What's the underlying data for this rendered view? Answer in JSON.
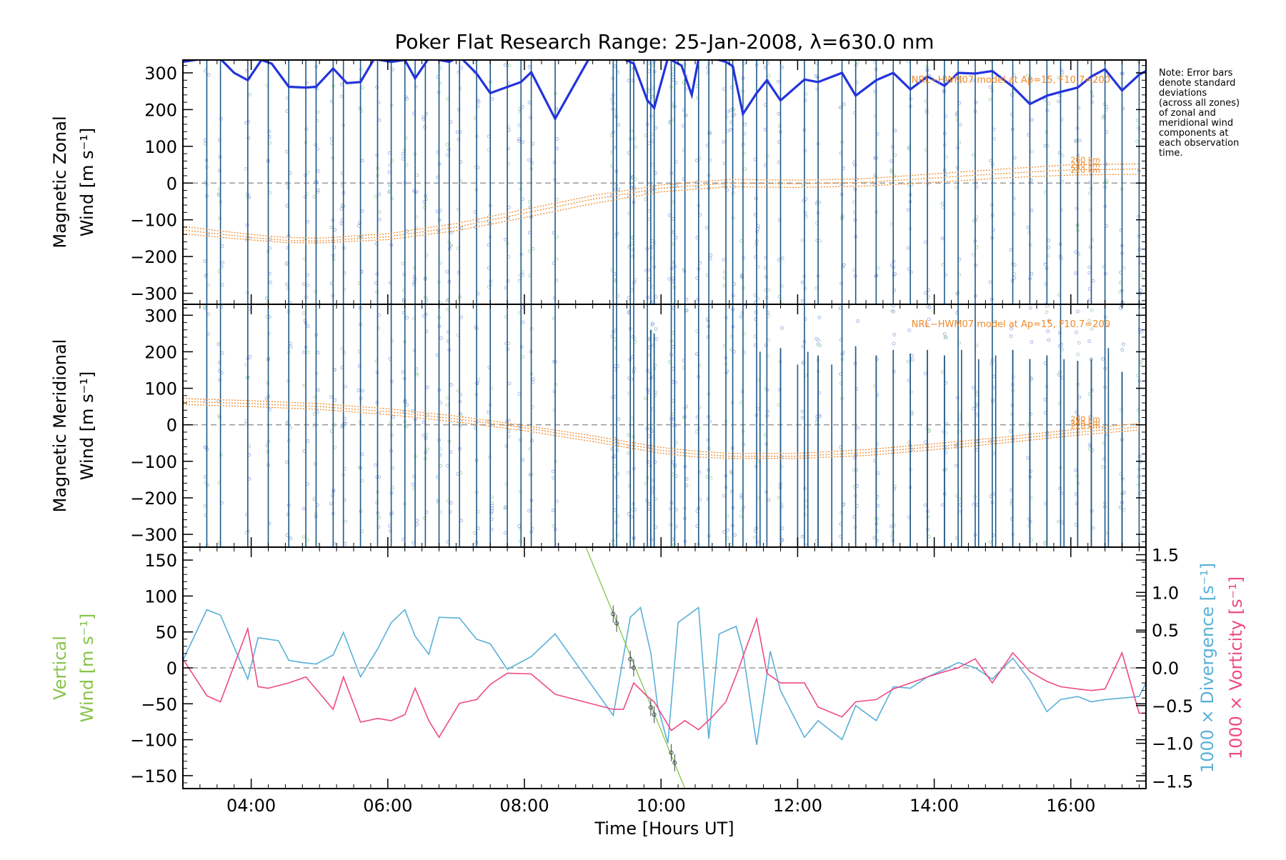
{
  "chart_data": {
    "type": "line",
    "title": "Poker Flat Research Range: 25-Jan-2008, λ=630.0 nm",
    "xlabel": "Time [Hours UT]",
    "xlim": [
      3.0,
      17.1
    ],
    "xticks": [
      4,
      6,
      8,
      10,
      12,
      14,
      16
    ],
    "xtick_labels": [
      "04:00",
      "06:00",
      "08:00",
      "10:00",
      "12:00",
      "14:00",
      "16:00"
    ],
    "note": [
      "Note: Error bars",
      "denote standard",
      "deviations",
      "(across all zones)",
      "of zonal and",
      "meridional wind",
      "components at",
      "each observation",
      "time."
    ],
    "colors": {
      "zonal_mean": "#2233dd",
      "error_bar": "#1f5a8a",
      "model": "#f08a2a",
      "vertical": "#88c34a",
      "divergence": "#5ab0d8",
      "vorticity": "#ee4a86",
      "zero_line": "#888888",
      "zone_dot_a": "#8fa7dd",
      "zone_dot_b": "#9fd0a0"
    },
    "obs_times": [
      3.35,
      3.55,
      3.95,
      4.25,
      4.55,
      4.8,
      4.95,
      5.2,
      5.35,
      5.6,
      5.85,
      6.05,
      6.25,
      6.4,
      6.55,
      6.75,
      6.9,
      7.05,
      7.3,
      7.5,
      7.75,
      7.95,
      8.1,
      8.45,
      9.3,
      9.35,
      9.55,
      9.6,
      9.8,
      9.85,
      9.9,
      10.15,
      10.2,
      10.35,
      10.55,
      10.7,
      10.95,
      11.05,
      11.2,
      11.4,
      11.55,
      11.75,
      12.1,
      12.3,
      12.65,
      12.85,
      13.15,
      13.4,
      13.65,
      13.9,
      14.15,
      14.35,
      14.6,
      14.85,
      15.15,
      15.4,
      15.65,
      15.85,
      16.1,
      16.3,
      16.5,
      16.75,
      17.0
    ],
    "panels": [
      {
        "ylabel": [
          "Magnetic Zonal",
          "Wind [m s⁻¹]"
        ],
        "ylim": [
          -330,
          335
        ],
        "yticks": [
          -300,
          -200,
          -100,
          0,
          100,
          200,
          300
        ],
        "ytick_labels": [
          "−300",
          "−200",
          "−100",
          "0",
          "100",
          "200",
          "300"
        ],
        "model_label": "NRL−HWM07 model at Ap=15, F10.7=200",
        "model_altitudes": [
          "260 km",
          "240 km",
          "220 km"
        ],
        "series": [
          {
            "role": "observed-mean",
            "x": [
              3.0,
              3.35,
              3.55,
              3.75,
              3.95,
              4.15,
              4.3,
              4.55,
              4.8,
              4.95,
              5.2,
              5.4,
              5.6,
              5.8,
              6.05,
              6.25,
              6.4,
              6.6,
              6.9,
              7.05,
              7.3,
              7.5,
              7.95,
              8.1,
              8.45,
              8.95,
              9.3,
              9.45,
              9.6,
              9.8,
              9.9,
              10.1,
              10.3,
              10.45,
              10.55,
              10.75,
              10.95,
              11.05,
              11.2,
              11.4,
              11.55,
              11.75,
              12.1,
              12.3,
              12.65,
              12.85,
              13.15,
              13.4,
              13.65,
              13.9,
              14.15,
              14.35,
              14.6,
              14.85,
              15.15,
              15.4,
              15.65,
              15.85,
              16.1,
              16.3,
              16.5,
              16.75,
              17.0,
              17.1
            ],
            "y": [
              330,
              340,
              338,
              300,
              280,
              335,
              325,
              262,
              260,
              262,
              312,
              272,
              275,
              338,
              330,
              335,
              285,
              340,
              330,
              345,
              298,
              245,
              275,
              302,
              175,
              340,
              345,
              338,
              325,
              225,
              205,
              340,
              320,
              240,
              338,
              340,
              330,
              318,
              188,
              245,
              280,
              225,
              282,
              275,
              300,
              238,
              280,
              300,
              255,
              290,
              265,
              300,
              298,
              305,
              262,
              215,
              238,
              248,
              260,
              290,
              310,
              252,
              295,
              305
            ]
          },
          {
            "role": "model",
            "name": "260 km",
            "x": [
              3.0,
              4.0,
              4.5,
              5.0,
              6.0,
              7.0,
              8.0,
              9.0,
              10.0,
              11.0,
              12.0,
              13.0,
              14.0,
              15.0,
              16.0,
              17.0
            ],
            "y": [
              -118,
              -140,
              -148,
              -150,
              -138,
              -110,
              -72,
              -34,
              -5,
              10,
              8,
              12,
              25,
              38,
              50,
              52
            ]
          },
          {
            "role": "model",
            "name": "240 km",
            "x": [
              3.0,
              4.0,
              4.5,
              5.0,
              6.0,
              7.0,
              8.0,
              9.0,
              10.0,
              11.0,
              12.0,
              13.0,
              14.0,
              15.0,
              16.0,
              17.0
            ],
            "y": [
              -128,
              -148,
              -156,
              -158,
              -146,
              -120,
              -82,
              -44,
              -14,
              0,
              -2,
              2,
              14,
              26,
              36,
              38
            ]
          },
          {
            "role": "model",
            "name": "220 km",
            "x": [
              3.0,
              4.0,
              4.5,
              5.0,
              6.0,
              7.0,
              8.0,
              9.0,
              10.0,
              11.0,
              12.0,
              13.0,
              14.0,
              15.0,
              16.0,
              17.0
            ],
            "y": [
              -138,
              -155,
              -162,
              -163,
              -154,
              -130,
              -94,
              -56,
              -24,
              -10,
              -12,
              -8,
              2,
              14,
              22,
              24
            ]
          }
        ]
      },
      {
        "ylabel": [
          "Magnetic Meridional",
          "Wind [m s⁻¹]"
        ],
        "ylim": [
          -335,
          330
        ],
        "yticks": [
          -300,
          -200,
          -100,
          0,
          100,
          200,
          300
        ],
        "ytick_labels": [
          "−300",
          "−200",
          "−100",
          "0",
          "100",
          "200",
          "300"
        ],
        "model_label": "NRL−HWM07 model at Ap=15, F10.7=200",
        "model_altitudes": [
          "260 km",
          "240 km",
          "220 km"
        ],
        "partial_bar_tops": [
          [
            9.85,
            260
          ],
          [
            9.9,
            250
          ],
          [
            11.45,
            200
          ],
          [
            11.75,
            210
          ],
          [
            12.0,
            165
          ],
          [
            12.15,
            200
          ],
          [
            12.3,
            190
          ],
          [
            12.5,
            165
          ],
          [
            12.85,
            215
          ],
          [
            13.15,
            190
          ],
          [
            13.4,
            205
          ],
          [
            13.65,
            195
          ],
          [
            13.9,
            205
          ],
          [
            14.15,
            190
          ],
          [
            14.4,
            205
          ],
          [
            14.65,
            180
          ],
          [
            14.9,
            190
          ],
          [
            15.15,
            205
          ],
          [
            15.4,
            180
          ],
          [
            15.65,
            190
          ],
          [
            15.9,
            180
          ],
          [
            16.1,
            175
          ],
          [
            16.3,
            180
          ],
          [
            16.55,
            210
          ],
          [
            16.75,
            145
          ]
        ],
        "series": [
          {
            "role": "model",
            "name": "260 km",
            "x": [
              3.0,
              4.0,
              5.0,
              6.0,
              7.0,
              8.0,
              9.0,
              10.0,
              10.5,
              11.0,
              12.0,
              13.0,
              14.0,
              15.0,
              16.0,
              17.0
            ],
            "y": [
              72,
              66,
              58,
              44,
              24,
              -2,
              -30,
              -62,
              -72,
              -78,
              -78,
              -68,
              -52,
              -34,
              -14,
              4
            ]
          },
          {
            "role": "model",
            "name": "240 km",
            "x": [
              3.0,
              4.0,
              5.0,
              6.0,
              7.0,
              8.0,
              9.0,
              10.0,
              10.5,
              11.0,
              12.0,
              13.0,
              14.0,
              15.0,
              16.0,
              17.0
            ],
            "y": [
              64,
              58,
              50,
              36,
              16,
              -8,
              -38,
              -70,
              -80,
              -86,
              -86,
              -76,
              -60,
              -42,
              -22,
              -6
            ]
          },
          {
            "role": "model",
            "name": "220 km",
            "x": [
              3.0,
              4.0,
              5.0,
              6.0,
              7.0,
              8.0,
              9.0,
              10.0,
              10.5,
              11.0,
              12.0,
              13.0,
              14.0,
              15.0,
              16.0,
              17.0
            ],
            "y": [
              56,
              50,
              42,
              28,
              8,
              -16,
              -46,
              -78,
              -88,
              -92,
              -92,
              -84,
              -68,
              -50,
              -30,
              -14
            ]
          }
        ]
      },
      {
        "ylabel": [
          "Vertical",
          "Wind [m s⁻¹]"
        ],
        "ylim": [
          -168,
          168
        ],
        "yticks": [
          -150,
          -100,
          -50,
          0,
          50,
          100,
          150
        ],
        "ytick_labels": [
          "−150",
          "−100",
          "−50",
          "0",
          "50",
          "100",
          "150"
        ],
        "y2label_divergence": "1000 × Divergence [s⁻¹]",
        "y2label_vorticity": "1000 × Vorticity [s⁻¹]",
        "y2lim": [
          -1.6,
          1.6
        ],
        "y2ticks": [
          -1.5,
          -1.0,
          -0.5,
          0.0,
          0.5,
          1.0,
          1.5
        ],
        "y2tick_labels": [
          "−1.5",
          "−1.0",
          "−0.5",
          "0.0",
          "0.5",
          "1.0",
          "1.5"
        ],
        "series": [
          {
            "role": "vertical-fit",
            "name": "Vertical Wind",
            "x": [
              8.9,
              10.35
            ],
            "y": [
              168,
              -168
            ]
          },
          {
            "role": "vertical-obs",
            "x": [
              9.3,
              9.35,
              9.55,
              9.6,
              9.85,
              9.9,
              10.15,
              10.2
            ],
            "y": [
              75,
              62,
              12,
              0,
              -55,
              -65,
              -118,
              -132
            ]
          },
          {
            "role": "divergence",
            "name": "1000 × Divergence",
            "x": [
              3.0,
              3.35,
              3.55,
              3.95,
              4.1,
              4.4,
              4.55,
              4.75,
              4.95,
              5.2,
              5.35,
              5.6,
              5.85,
              6.05,
              6.25,
              6.4,
              6.6,
              6.75,
              7.05,
              7.3,
              7.5,
              7.75,
              8.1,
              8.45,
              9.3,
              9.55,
              9.7,
              9.85,
              9.95,
              10.1,
              10.25,
              10.55,
              10.7,
              10.85,
              11.1,
              11.2,
              11.4,
              11.6,
              11.75,
              12.1,
              12.3,
              12.65,
              12.85,
              13.15,
              13.4,
              13.65,
              13.9,
              14.15,
              14.35,
              14.6,
              14.85,
              15.15,
              15.4,
              15.65,
              15.85,
              16.1,
              16.3,
              16.5,
              16.75,
              17.0,
              17.1
            ],
            "y": [
              0.1,
              0.77,
              0.7,
              -0.15,
              0.4,
              0.36,
              0.1,
              0.07,
              0.05,
              0.17,
              0.47,
              -0.12,
              0.25,
              0.6,
              0.77,
              0.42,
              0.18,
              0.67,
              0.66,
              0.38,
              0.32,
              -0.02,
              0.15,
              0.45,
              -0.63,
              0.67,
              0.8,
              0.2,
              -0.5,
              -1.0,
              0.6,
              0.8,
              -0.94,
              0.45,
              0.55,
              0.22,
              -1.02,
              0.22,
              -0.3,
              -0.92,
              -0.7,
              -0.95,
              -0.5,
              -0.7,
              -0.25,
              -0.27,
              -0.12,
              -0.02,
              0.07,
              0.0,
              -0.15,
              0.13,
              -0.17,
              -0.58,
              -0.42,
              -0.38,
              -0.45,
              -0.42,
              -0.4,
              -0.38,
              -0.2
            ]
          },
          {
            "role": "vorticity",
            "name": "1000 × Vorticity",
            "x": [
              3.0,
              3.35,
              3.55,
              3.95,
              4.1,
              4.25,
              4.55,
              4.8,
              4.95,
              5.2,
              5.35,
              5.6,
              5.85,
              6.05,
              6.25,
              6.4,
              6.6,
              6.75,
              7.05,
              7.3,
              7.5,
              7.75,
              8.1,
              8.45,
              9.3,
              9.45,
              9.6,
              9.8,
              9.9,
              10.15,
              10.35,
              10.55,
              10.75,
              10.95,
              11.1,
              11.4,
              11.55,
              11.75,
              12.1,
              12.3,
              12.65,
              12.85,
              13.15,
              13.4,
              13.65,
              13.9,
              14.15,
              14.35,
              14.6,
              14.85,
              15.15,
              15.4,
              15.65,
              15.85,
              16.1,
              16.3,
              16.5,
              16.75,
              17.0,
              17.1
            ],
            "y": [
              0.12,
              -0.37,
              -0.45,
              0.52,
              -0.25,
              -0.27,
              -0.2,
              -0.12,
              -0.28,
              -0.55,
              -0.12,
              -0.72,
              -0.67,
              -0.7,
              -0.62,
              -0.27,
              -0.7,
              -0.92,
              -0.47,
              -0.42,
              -0.22,
              -0.07,
              -0.08,
              -0.35,
              -0.55,
              -0.55,
              -0.2,
              -0.38,
              -0.45,
              -0.83,
              -0.7,
              -0.82,
              -0.65,
              -0.45,
              -0.1,
              0.65,
              -0.07,
              -0.2,
              -0.2,
              -0.52,
              -0.65,
              -0.45,
              -0.42,
              -0.28,
              -0.2,
              -0.12,
              -0.05,
              0.0,
              0.12,
              -0.2,
              0.2,
              -0.05,
              -0.18,
              -0.25,
              -0.28,
              -0.3,
              -0.28,
              0.2,
              -0.6,
              -0.6
            ]
          }
        ]
      }
    ]
  }
}
